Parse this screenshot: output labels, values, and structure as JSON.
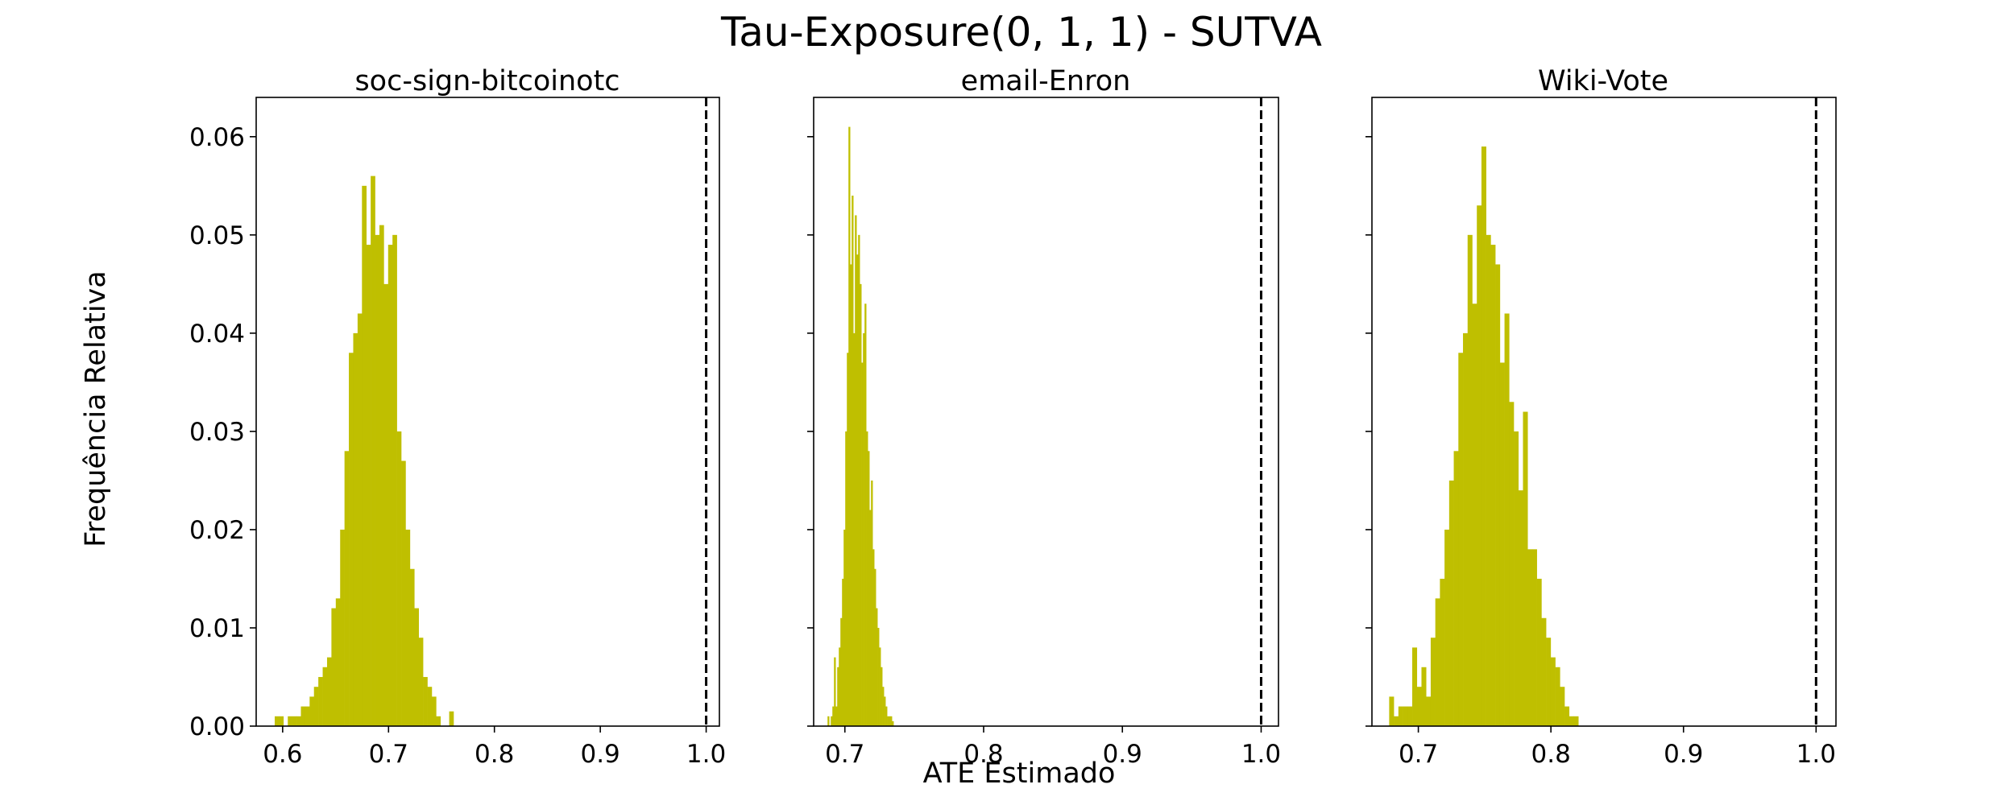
{
  "figure": {
    "title": "Tau-Exposure(0, 1, 1) - SUTVA",
    "xlabel": "ATE Estimado",
    "ylabel": "Frequência Relativa"
  },
  "chart_data": [
    {
      "type": "histogram",
      "title": "soc-sign-bitcoinotc",
      "xlim": [
        0.575,
        1.0125
      ],
      "ylim": [
        0,
        0.064
      ],
      "xticks": [
        0.6,
        0.7,
        0.8,
        0.9,
        1.0
      ],
      "xtick_labels": [
        "0.6",
        "0.7",
        "0.8",
        "0.9",
        "1.0"
      ],
      "yticks": [
        0.0,
        0.01,
        0.02,
        0.03,
        0.04,
        0.05,
        0.06
      ],
      "ytick_labels": [
        "0.00",
        "0.01",
        "0.02",
        "0.03",
        "0.04",
        "0.05",
        "0.06"
      ],
      "reference_line_x": 1.0,
      "color": "#bfbf00",
      "bin_start": 0.5925,
      "bin_width": 0.00412,
      "values": [
        0.001,
        0.001,
        0,
        0.001,
        0.001,
        0.001,
        0.002,
        0.002,
        0.003,
        0.004,
        0.005,
        0.006,
        0.007,
        0.012,
        0.013,
        0.02,
        0.028,
        0.038,
        0.04,
        0.042,
        0.055,
        0.049,
        0.056,
        0.05,
        0.051,
        0.045,
        0.049,
        0.05,
        0.03,
        0.027,
        0.02,
        0.016,
        0.012,
        0.009,
        0.005,
        0.004,
        0.003,
        0.001,
        0,
        0,
        0.0015
      ]
    },
    {
      "type": "histogram",
      "title": "email-Enron",
      "xlim": [
        0.6775,
        1.0125
      ],
      "ylim": [
        0,
        0.064
      ],
      "xticks": [
        0.7,
        0.8,
        0.9,
        1.0
      ],
      "xtick_labels": [
        "0.7",
        "0.8",
        "0.9",
        "1.0"
      ],
      "yticks": [
        0.0,
        0.01,
        0.02,
        0.03,
        0.04,
        0.05,
        0.06
      ],
      "ytick_labels": [],
      "reference_line_x": 1.0,
      "color": "#bfbf00",
      "bin_start": 0.6875,
      "bin_width": 0.00116,
      "values": [
        0.001,
        0,
        0.001,
        0.002,
        0.007,
        0.002,
        0.006,
        0.008,
        0.011,
        0.015,
        0.02,
        0.03,
        0.038,
        0.061,
        0.047,
        0.054,
        0.04,
        0.052,
        0.048,
        0.05,
        0.045,
        0.037,
        0.04,
        0.043,
        0.03,
        0.028,
        0.022,
        0.025,
        0.018,
        0.016,
        0.012,
        0.01,
        0.008,
        0.006,
        0.004,
        0.003,
        0.002,
        0.001,
        0.001,
        0.001,
        0.0005
      ]
    },
    {
      "type": "histogram",
      "title": "Wiki-Vote",
      "xlim": [
        0.665,
        1.015
      ],
      "ylim": [
        0,
        0.064
      ],
      "xticks": [
        0.7,
        0.8,
        0.9,
        1.0
      ],
      "xtick_labels": [
        "0.7",
        "0.8",
        "0.9",
        "1.0"
      ],
      "yticks": [
        0.0,
        0.01,
        0.02,
        0.03,
        0.04,
        0.05,
        0.06
      ],
      "ytick_labels": [],
      "reference_line_x": 1.0,
      "color": "#bfbf00",
      "bin_start": 0.678,
      "bin_width": 0.00348,
      "values": [
        0.003,
        0.001,
        0.002,
        0.002,
        0.002,
        0.008,
        0.004,
        0.006,
        0.003,
        0.009,
        0.013,
        0.015,
        0.02,
        0.025,
        0.028,
        0.038,
        0.04,
        0.05,
        0.043,
        0.053,
        0.059,
        0.05,
        0.049,
        0.047,
        0.037,
        0.042,
        0.033,
        0.03,
        0.024,
        0.032,
        0.018,
        0.018,
        0.015,
        0.011,
        0.009,
        0.007,
        0.006,
        0.004,
        0.002,
        0.001,
        0.001
      ]
    }
  ]
}
